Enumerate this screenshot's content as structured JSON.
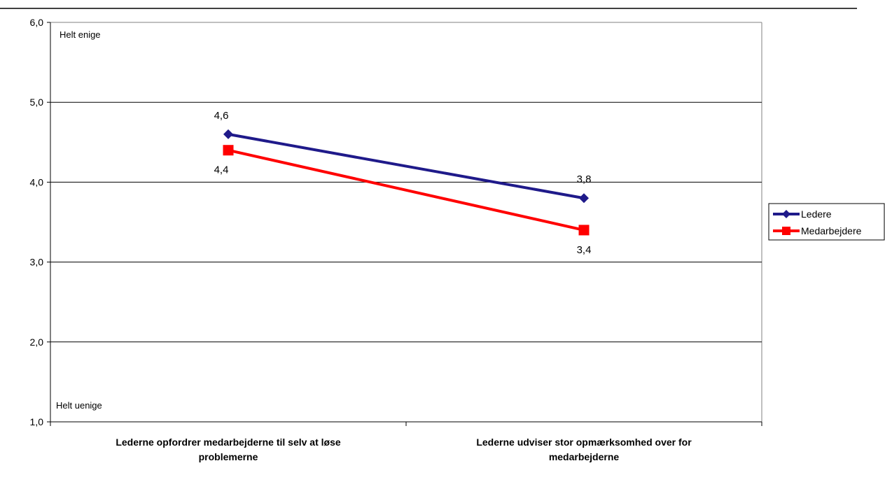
{
  "chart_data": {
    "type": "line",
    "categories": [
      [
        "Lederne opfordrer medarbejderne til selv at løse",
        "problemerne"
      ],
      [
        "Lederne udviser stor opmærksomhed over for",
        "medarbejderne"
      ]
    ],
    "series": [
      {
        "name": "Ledere",
        "values": [
          4.6,
          3.8
        ],
        "labels": [
          "4,6",
          "3,8"
        ],
        "color": "#1f1a8a",
        "marker": "diamond"
      },
      {
        "name": "Medarbejdere",
        "values": [
          4.4,
          3.4
        ],
        "labels": [
          "4,4",
          "3,4"
        ],
        "color": "#ff0000",
        "marker": "square"
      }
    ],
    "ylim": [
      1,
      6
    ],
    "yticks": [
      1,
      2,
      3,
      4,
      5,
      6
    ],
    "ytick_labels": [
      "1,0",
      "2,0",
      "3,0",
      "4,0",
      "5,0",
      "6,0"
    ],
    "annotations": {
      "top": "Helt enige",
      "bottom": "Helt uenige"
    },
    "grid": true,
    "legend": "right"
  }
}
